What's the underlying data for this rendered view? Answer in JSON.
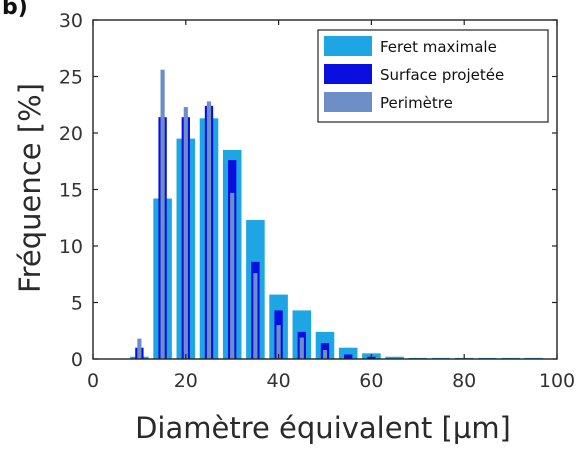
{
  "panel_label": "b)",
  "chart_data": {
    "type": "bar",
    "xlabel": "Diamètre équivalent [µm]",
    "ylabel": "Fréquence [%]",
    "xlim": [
      0,
      100
    ],
    "ylim": [
      0,
      30
    ],
    "xticks": [
      0,
      20,
      40,
      60,
      80,
      100
    ],
    "yticks": [
      0,
      5,
      10,
      15,
      20,
      25,
      30
    ],
    "grid": false,
    "legend_position": "top-right",
    "series": [
      {
        "name": "Feret maximale",
        "color": "#1ea5e3",
        "bin_width": 4.0,
        "x": [
          10,
          15,
          20,
          25,
          30,
          35,
          40,
          45,
          50,
          55,
          60,
          65,
          70,
          75,
          80,
          85,
          90,
          95
        ],
        "values": [
          0.2,
          14.2,
          19.5,
          21.3,
          18.5,
          12.3,
          5.7,
          4.3,
          2.4,
          1.0,
          0.5,
          0.2,
          0.1,
          0.1,
          0.1,
          0.1,
          0.1,
          0.1
        ]
      },
      {
        "name": "Surface projetée",
        "color": "#0a0fe0",
        "bin_width": 1.8,
        "x": [
          10,
          15,
          20,
          25,
          30,
          35,
          40,
          45,
          50,
          55,
          60
        ],
        "values": [
          1.0,
          21.4,
          21.4,
          22.4,
          17.6,
          8.6,
          4.3,
          2.4,
          1.4,
          0.4,
          0.2
        ]
      },
      {
        "name": "Perimètre",
        "color": "#6d8fc7",
        "bin_width": 0.9,
        "x": [
          10,
          15,
          20,
          25,
          30,
          35,
          40,
          45,
          50
        ],
        "values": [
          1.8,
          25.6,
          22.3,
          22.8,
          14.7,
          7.6,
          3.0,
          1.9,
          0.8
        ]
      }
    ]
  }
}
